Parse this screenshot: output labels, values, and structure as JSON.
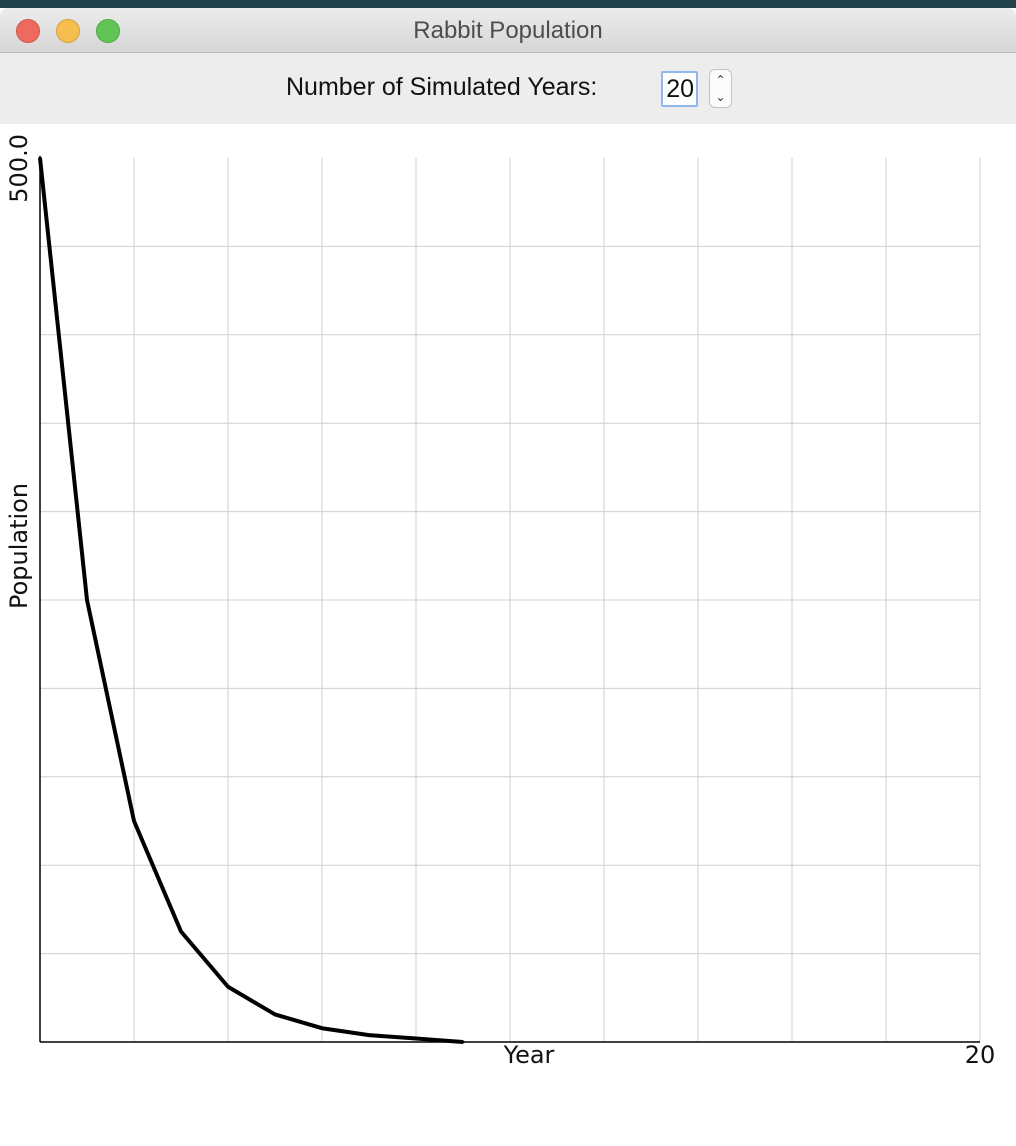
{
  "window": {
    "title": "Rabbit Population"
  },
  "controls": {
    "years_label": "Number of Simulated Years:",
    "years_value": "20"
  },
  "chart_data": {
    "type": "line",
    "xlabel": "Year",
    "ylabel": "Population",
    "xlim": [
      0,
      20
    ],
    "ylim": [
      0,
      500
    ],
    "x_tick_labels": [
      "20"
    ],
    "y_tick_labels": [
      "500.0"
    ],
    "grid": true,
    "x": [
      0,
      1,
      2,
      3,
      4,
      5,
      6,
      7,
      8,
      9
    ],
    "series": [
      {
        "values": [
          500,
          250,
          125,
          62.5,
          31.25,
          15.6,
          7.8,
          3.9,
          1.95,
          0
        ]
      }
    ],
    "colors": {
      "line": "#000000",
      "grid": "#cfcfcf",
      "axis": "#000000"
    }
  }
}
